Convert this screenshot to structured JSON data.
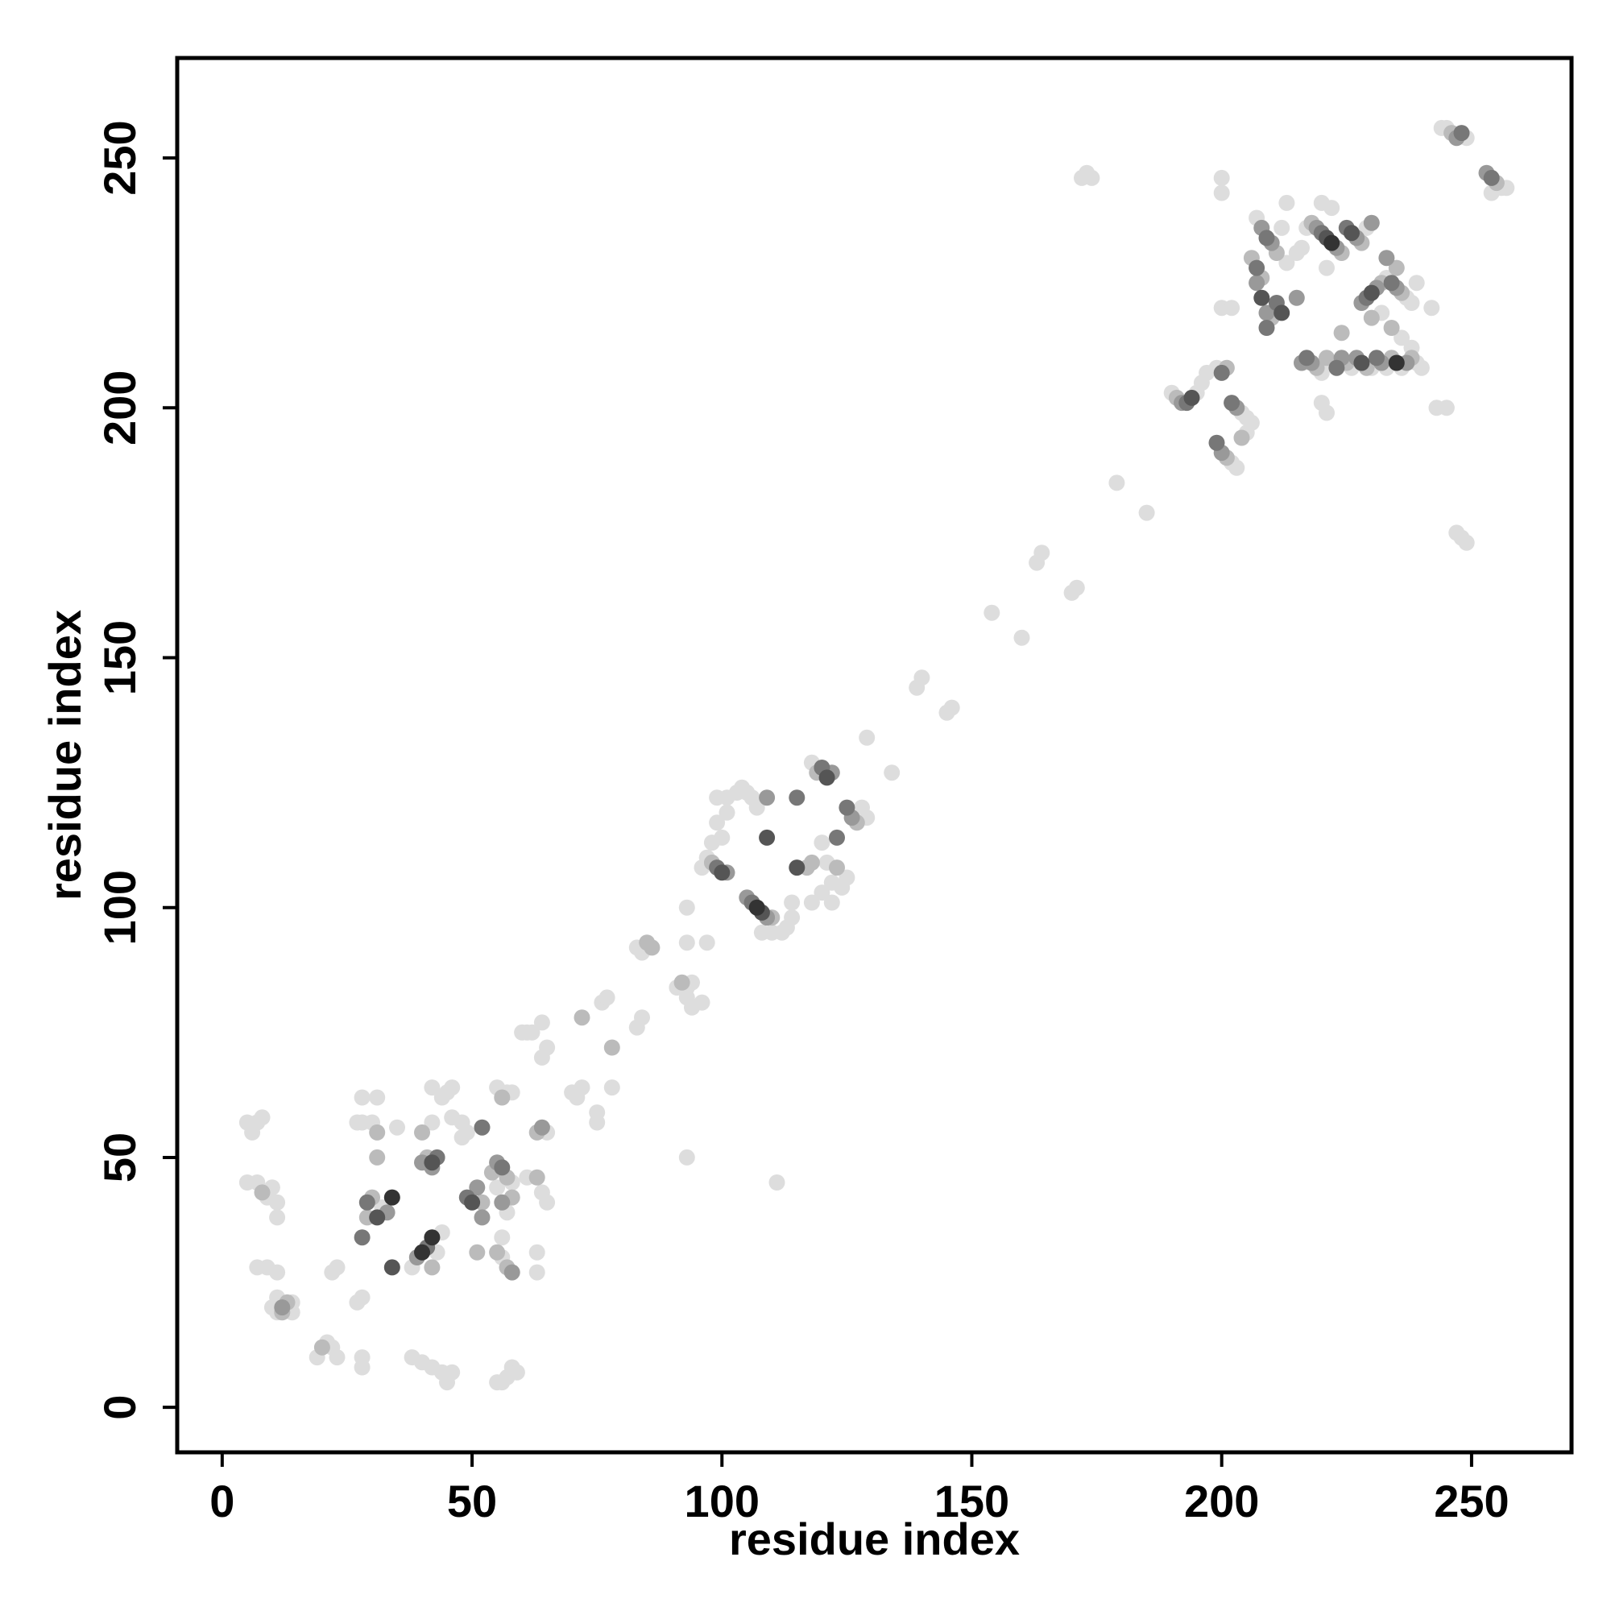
{
  "chart_data": {
    "type": "scatter",
    "title": "",
    "xlabel": "residue index",
    "ylabel": "residue index",
    "xlim": [
      -9,
      270
    ],
    "ylim": [
      -9,
      270
    ],
    "xticks": [
      0,
      50,
      100,
      150,
      200,
      250
    ],
    "yticks": [
      0,
      50,
      100,
      150,
      200,
      250
    ],
    "grid": false,
    "legend": "none",
    "marker_color_scale": [
      "#dddddd",
      "#bbbbbb",
      "#999999",
      "#777777",
      "#555555",
      "#333333"
    ],
    "points": [
      [
        5,
        57,
        0
      ],
      [
        6,
        55,
        0
      ],
      [
        7,
        57,
        0
      ],
      [
        8,
        58,
        0
      ],
      [
        5,
        45,
        0
      ],
      [
        7,
        45,
        0
      ],
      [
        8,
        43,
        1
      ],
      [
        9,
        42,
        0
      ],
      [
        10,
        44,
        0
      ],
      [
        11,
        41,
        0
      ],
      [
        11,
        38,
        0
      ],
      [
        7,
        28,
        0
      ],
      [
        9,
        28,
        0
      ],
      [
        11,
        27,
        0
      ],
      [
        11,
        22,
        0
      ],
      [
        11,
        19,
        0
      ],
      [
        12,
        19,
        1
      ],
      [
        12,
        20,
        2
      ],
      [
        13,
        21,
        1
      ],
      [
        14,
        21,
        0
      ],
      [
        14,
        19,
        0
      ],
      [
        10,
        20,
        0
      ],
      [
        19,
        10,
        0
      ],
      [
        20,
        12,
        1
      ],
      [
        21,
        13,
        0
      ],
      [
        22,
        12,
        0
      ],
      [
        23,
        10,
        0
      ],
      [
        22,
        27,
        0
      ],
      [
        23,
        28,
        0
      ],
      [
        28,
        10,
        0
      ],
      [
        28,
        8,
        0
      ],
      [
        27,
        21,
        0
      ],
      [
        28,
        22,
        0
      ],
      [
        28,
        34,
        3
      ],
      [
        29,
        38,
        1
      ],
      [
        29,
        41,
        3
      ],
      [
        30,
        42,
        1
      ],
      [
        31,
        38,
        4
      ],
      [
        32,
        40,
        0
      ],
      [
        33,
        39,
        2
      ],
      [
        34,
        42,
        5
      ],
      [
        34,
        28,
        4
      ],
      [
        27,
        57,
        0
      ],
      [
        28,
        57,
        0
      ],
      [
        30,
        57,
        0
      ],
      [
        31,
        55,
        1
      ],
      [
        28,
        62,
        0
      ],
      [
        31,
        62,
        0
      ],
      [
        31,
        50,
        1
      ],
      [
        35,
        56,
        0
      ],
      [
        38,
        28,
        0
      ],
      [
        39,
        30,
        2
      ],
      [
        40,
        31,
        5
      ],
      [
        41,
        32,
        3
      ],
      [
        42,
        28,
        1
      ],
      [
        42,
        34,
        5
      ],
      [
        43,
        31,
        0
      ],
      [
        44,
        35,
        0
      ],
      [
        38,
        10,
        0
      ],
      [
        40,
        9,
        0
      ],
      [
        42,
        8,
        0
      ],
      [
        44,
        7,
        0
      ],
      [
        45,
        5,
        0
      ],
      [
        46,
        7,
        0
      ],
      [
        40,
        49,
        2
      ],
      [
        41,
        50,
        1
      ],
      [
        42,
        48,
        2
      ],
      [
        42,
        49,
        4
      ],
      [
        43,
        50,
        3
      ],
      [
        40,
        55,
        1
      ],
      [
        42,
        57,
        0
      ],
      [
        42,
        64,
        0
      ],
      [
        44,
        62,
        0
      ],
      [
        45,
        63,
        0
      ],
      [
        46,
        64,
        0
      ],
      [
        46,
        58,
        0
      ],
      [
        48,
        54,
        0
      ],
      [
        49,
        42,
        3
      ],
      [
        50,
        41,
        4
      ],
      [
        51,
        44,
        2
      ],
      [
        52,
        41,
        1
      ],
      [
        52,
        38,
        2
      ],
      [
        51,
        31,
        1
      ],
      [
        52,
        56,
        3
      ],
      [
        48,
        57,
        0
      ],
      [
        49,
        55,
        0
      ],
      [
        54,
        47,
        1
      ],
      [
        55,
        49,
        2
      ],
      [
        56,
        48,
        3
      ],
      [
        57,
        46,
        1
      ],
      [
        58,
        45,
        0
      ],
      [
        55,
        44,
        0
      ],
      [
        56,
        41,
        2
      ],
      [
        57,
        39,
        0
      ],
      [
        58,
        42,
        1
      ],
      [
        55,
        31,
        1
      ],
      [
        56,
        30,
        0
      ],
      [
        57,
        28,
        1
      ],
      [
        58,
        27,
        2
      ],
      [
        56,
        34,
        0
      ],
      [
        55,
        64,
        0
      ],
      [
        56,
        62,
        1
      ],
      [
        57,
        63,
        0
      ],
      [
        58,
        63,
        0
      ],
      [
        55,
        5,
        0
      ],
      [
        56,
        5,
        0
      ],
      [
        57,
        6,
        0
      ],
      [
        58,
        8,
        0
      ],
      [
        59,
        7,
        0
      ],
      [
        60,
        75,
        0
      ],
      [
        61,
        75,
        0
      ],
      [
        62,
        75,
        0
      ],
      [
        61,
        46,
        0
      ],
      [
        63,
        46,
        1
      ],
      [
        64,
        43,
        0
      ],
      [
        65,
        41,
        0
      ],
      [
        63,
        55,
        1
      ],
      [
        64,
        56,
        2
      ],
      [
        65,
        55,
        0
      ],
      [
        64,
        70,
        0
      ],
      [
        65,
        72,
        0
      ],
      [
        64,
        77,
        0
      ],
      [
        63,
        27,
        0
      ],
      [
        63,
        31,
        0
      ],
      [
        70,
        63,
        0
      ],
      [
        71,
        62,
        0
      ],
      [
        72,
        64,
        0
      ],
      [
        72,
        78,
        1
      ],
      [
        75,
        57,
        0
      ],
      [
        75,
        59,
        0
      ],
      [
        76,
        81,
        0
      ],
      [
        77,
        82,
        0
      ],
      [
        78,
        64,
        0
      ],
      [
        78,
        72,
        1
      ],
      [
        83,
        76,
        0
      ],
      [
        84,
        78,
        0
      ],
      [
        83,
        92,
        0
      ],
      [
        84,
        91,
        0
      ],
      [
        85,
        93,
        1
      ],
      [
        86,
        92,
        1
      ],
      [
        91,
        84,
        0
      ],
      [
        92,
        85,
        1
      ],
      [
        93,
        84,
        0
      ],
      [
        94,
        85,
        0
      ],
      [
        93,
        82,
        0
      ],
      [
        94,
        80,
        0
      ],
      [
        96,
        81,
        0
      ],
      [
        93,
        100,
        0
      ],
      [
        93,
        93,
        0
      ],
      [
        97,
        93,
        0
      ],
      [
        93,
        50,
        0
      ],
      [
        96,
        108,
        0
      ],
      [
        97,
        110,
        0
      ],
      [
        98,
        109,
        1
      ],
      [
        99,
        108,
        3
      ],
      [
        100,
        107,
        4
      ],
      [
        101,
        107,
        2
      ],
      [
        98,
        113,
        0
      ],
      [
        100,
        114,
        0
      ],
      [
        99,
        117,
        0
      ],
      [
        101,
        119,
        0
      ],
      [
        99,
        122,
        0
      ],
      [
        101,
        122,
        0
      ],
      [
        103,
        123,
        0
      ],
      [
        104,
        124,
        0
      ],
      [
        105,
        123,
        0
      ],
      [
        106,
        122,
        0
      ],
      [
        107,
        120,
        0
      ],
      [
        105,
        102,
        2
      ],
      [
        106,
        101,
        3
      ],
      [
        107,
        100,
        5
      ],
      [
        108,
        99,
        4
      ],
      [
        109,
        98,
        2
      ],
      [
        110,
        98,
        1
      ],
      [
        108,
        95,
        0
      ],
      [
        110,
        95,
        0
      ],
      [
        112,
        95,
        0
      ],
      [
        113,
        96,
        0
      ],
      [
        114,
        98,
        0
      ],
      [
        114,
        101,
        0
      ],
      [
        109,
        114,
        4
      ],
      [
        109,
        122,
        2
      ],
      [
        111,
        45,
        0
      ],
      [
        115,
        122,
        3
      ],
      [
        115,
        108,
        4
      ],
      [
        117,
        108,
        1
      ],
      [
        118,
        109,
        1
      ],
      [
        118,
        101,
        0
      ],
      [
        120,
        103,
        0
      ],
      [
        120,
        113,
        0
      ],
      [
        121,
        109,
        0
      ],
      [
        122,
        101,
        0
      ],
      [
        122,
        105,
        0
      ],
      [
        123,
        108,
        1
      ],
      [
        123,
        114,
        3
      ],
      [
        124,
        104,
        0
      ],
      [
        125,
        106,
        0
      ],
      [
        118,
        129,
        0
      ],
      [
        119,
        127,
        1
      ],
      [
        120,
        128,
        3
      ],
      [
        121,
        126,
        4
      ],
      [
        122,
        127,
        2
      ],
      [
        125,
        120,
        3
      ],
      [
        126,
        118,
        2
      ],
      [
        127,
        117,
        1
      ],
      [
        128,
        120,
        0
      ],
      [
        129,
        118,
        0
      ],
      [
        129,
        134,
        0
      ],
      [
        134,
        127,
        0
      ],
      [
        139,
        144,
        0
      ],
      [
        140,
        146,
        0
      ],
      [
        145,
        139,
        0
      ],
      [
        146,
        140,
        0
      ],
      [
        154,
        159,
        0
      ],
      [
        160,
        154,
        0
      ],
      [
        163,
        169,
        0
      ],
      [
        164,
        171,
        0
      ],
      [
        170,
        163,
        0
      ],
      [
        171,
        164,
        0
      ],
      [
        172,
        246,
        0
      ],
      [
        173,
        247,
        0
      ],
      [
        174,
        246,
        0
      ],
      [
        179,
        185,
        0
      ],
      [
        185,
        179,
        0
      ],
      [
        190,
        203,
        0
      ],
      [
        191,
        202,
        1
      ],
      [
        192,
        201,
        2
      ],
      [
        193,
        201,
        3
      ],
      [
        194,
        202,
        4
      ],
      [
        195,
        203,
        0
      ],
      [
        196,
        205,
        0
      ],
      [
        197,
        207,
        0
      ],
      [
        199,
        208,
        0
      ],
      [
        200,
        207,
        3
      ],
      [
        201,
        208,
        1
      ],
      [
        199,
        193,
        3
      ],
      [
        200,
        191,
        2
      ],
      [
        201,
        190,
        1
      ],
      [
        202,
        189,
        0
      ],
      [
        203,
        188,
        0
      ],
      [
        204,
        194,
        1
      ],
      [
        205,
        195,
        0
      ],
      [
        206,
        197,
        0
      ],
      [
        202,
        201,
        3
      ],
      [
        203,
        200,
        2
      ],
      [
        204,
        199,
        0
      ],
      [
        205,
        198,
        0
      ],
      [
        200,
        220,
        0
      ],
      [
        202,
        220,
        0
      ],
      [
        200,
        243,
        0
      ],
      [
        200,
        246,
        0
      ],
      [
        206,
        230,
        1
      ],
      [
        207,
        228,
        3
      ],
      [
        207,
        225,
        2
      ],
      [
        208,
        222,
        4
      ],
      [
        208,
        226,
        1
      ],
      [
        209,
        219,
        2
      ],
      [
        209,
        216,
        3
      ],
      [
        210,
        218,
        1
      ],
      [
        211,
        221,
        3
      ],
      [
        212,
        219,
        4
      ],
      [
        207,
        238,
        0
      ],
      [
        208,
        236,
        2
      ],
      [
        209,
        234,
        3
      ],
      [
        210,
        233,
        2
      ],
      [
        211,
        231,
        1
      ],
      [
        212,
        236,
        0
      ],
      [
        213,
        229,
        0
      ],
      [
        213,
        241,
        0
      ],
      [
        215,
        222,
        2
      ],
      [
        215,
        231,
        0
      ],
      [
        216,
        232,
        0
      ],
      [
        216,
        209,
        2
      ],
      [
        217,
        210,
        3
      ],
      [
        218,
        209,
        2
      ],
      [
        219,
        208,
        1
      ],
      [
        220,
        207,
        0
      ],
      [
        221,
        210,
        1
      ],
      [
        222,
        209,
        0
      ],
      [
        223,
        208,
        3
      ],
      [
        224,
        210,
        2
      ],
      [
        225,
        209,
        1
      ],
      [
        226,
        208,
        0
      ],
      [
        227,
        210,
        2
      ],
      [
        228,
        209,
        4
      ],
      [
        229,
        208,
        1
      ],
      [
        230,
        208,
        0
      ],
      [
        231,
        210,
        3
      ],
      [
        232,
        209,
        2
      ],
      [
        233,
        208,
        0
      ],
      [
        234,
        210,
        1
      ],
      [
        235,
        209,
        5
      ],
      [
        236,
        208,
        0
      ],
      [
        237,
        209,
        2
      ],
      [
        238,
        210,
        1
      ],
      [
        239,
        209,
        0
      ],
      [
        240,
        208,
        0
      ],
      [
        217,
        236,
        0
      ],
      [
        218,
        237,
        1
      ],
      [
        219,
        236,
        2
      ],
      [
        220,
        235,
        3
      ],
      [
        221,
        234,
        4
      ],
      [
        222,
        233,
        5
      ],
      [
        223,
        232,
        2
      ],
      [
        224,
        231,
        1
      ],
      [
        225,
        236,
        3
      ],
      [
        226,
        235,
        4
      ],
      [
        227,
        234,
        2
      ],
      [
        228,
        233,
        1
      ],
      [
        229,
        236,
        0
      ],
      [
        230,
        237,
        2
      ],
      [
        220,
        241,
        0
      ],
      [
        222,
        240,
        0
      ],
      [
        220,
        201,
        0
      ],
      [
        221,
        199,
        0
      ],
      [
        224,
        215,
        1
      ],
      [
        221,
        228,
        0
      ],
      [
        228,
        221,
        2
      ],
      [
        229,
        222,
        3
      ],
      [
        230,
        223,
        4
      ],
      [
        231,
        224,
        2
      ],
      [
        232,
        225,
        1
      ],
      [
        233,
        226,
        0
      ],
      [
        234,
        225,
        3
      ],
      [
        235,
        224,
        2
      ],
      [
        236,
        223,
        1
      ],
      [
        237,
        222,
        0
      ],
      [
        238,
        221,
        0
      ],
      [
        230,
        218,
        1
      ],
      [
        232,
        219,
        0
      ],
      [
        234,
        216,
        1
      ],
      [
        236,
        214,
        0
      ],
      [
        238,
        212,
        0
      ],
      [
        233,
        230,
        2
      ],
      [
        235,
        228,
        1
      ],
      [
        239,
        225,
        0
      ],
      [
        242,
        220,
        0
      ],
      [
        243,
        200,
        0
      ],
      [
        245,
        200,
        0
      ],
      [
        247,
        175,
        0
      ],
      [
        248,
        174,
        0
      ],
      [
        249,
        173,
        0
      ],
      [
        244,
        256,
        0
      ],
      [
        245,
        256,
        0
      ],
      [
        246,
        255,
        1
      ],
      [
        247,
        254,
        2
      ],
      [
        248,
        255,
        3
      ],
      [
        249,
        254,
        0
      ],
      [
        253,
        247,
        2
      ],
      [
        254,
        246,
        3
      ],
      [
        255,
        245,
        1
      ],
      [
        256,
        244,
        0
      ],
      [
        257,
        244,
        0
      ],
      [
        254,
        243,
        0
      ]
    ]
  }
}
